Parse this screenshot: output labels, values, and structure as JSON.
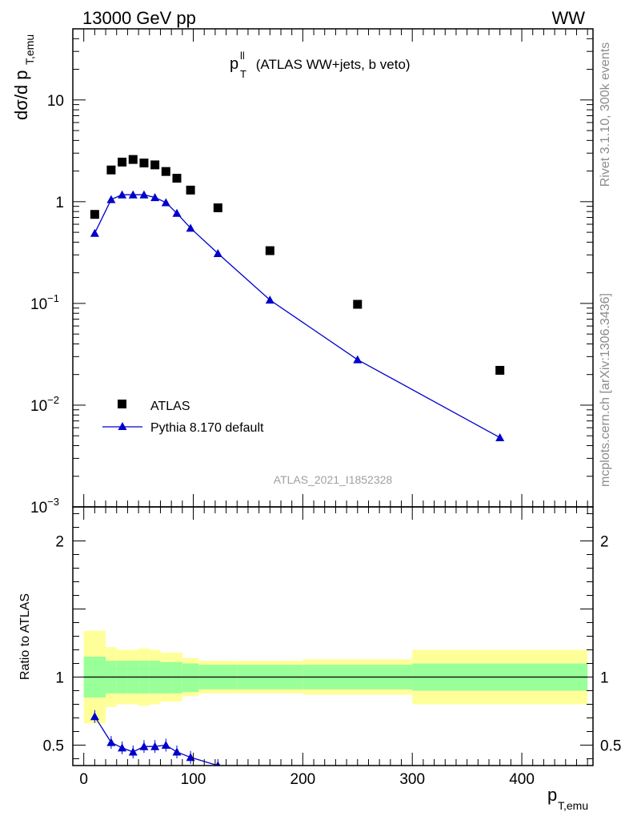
{
  "header": {
    "left": "13000 GeV pp",
    "right": "WW"
  },
  "side_labels": {
    "rivet": "Rivet 3.1.10,  300k events",
    "mcplots": "mcplots.cern.ch [arXiv:1306.3436]"
  },
  "colors": {
    "atlas": "#000000",
    "pythia": "#0000cc",
    "band_inner": "#99ff99",
    "band_outer": "#ffff99"
  },
  "chart_data": [
    {
      "type": "scatter",
      "title_main": "p",
      "title_sup": "ll",
      "title_sub": "T",
      "title_rest": " (ATLAS WW+jets, b veto)",
      "ylabel_main": "dσ/d p",
      "ylabel_sub": "T,emu",
      "yscale": "log",
      "ylim": [
        0.001,
        50
      ],
      "xlim": [
        -10,
        465
      ],
      "y_ticks": [
        {
          "v": 0.001,
          "base": "10",
          "exp": "−3"
        },
        {
          "v": 0.01,
          "base": "10",
          "exp": "−2"
        },
        {
          "v": 0.1,
          "base": "10",
          "exp": "−1"
        },
        {
          "v": 1,
          "base": "1",
          "exp": ""
        },
        {
          "v": 10,
          "base": "10",
          "exp": ""
        }
      ],
      "watermark": "ATLAS_2021_I1852328",
      "legend": [
        {
          "label": "ATLAS",
          "marker": "square"
        },
        {
          "label": "Pythia 8.170 default",
          "marker": "triangle"
        }
      ],
      "series": [
        {
          "name": "ATLAS",
          "x": [
            10,
            25,
            35,
            45,
            55,
            65,
            75,
            85,
            97.5,
            122.5,
            170,
            250,
            380
          ],
          "y": [
            0.75,
            2.05,
            2.45,
            2.6,
            2.4,
            2.3,
            1.98,
            1.7,
            1.3,
            0.87,
            0.33,
            0.098,
            0.022
          ]
        },
        {
          "name": "Pythia 8.170 default",
          "x": [
            10,
            25,
            35,
            45,
            55,
            65,
            75,
            85,
            97.5,
            122.5,
            170,
            250,
            380
          ],
          "y": [
            0.49,
            1.05,
            1.17,
            1.17,
            1.17,
            1.1,
            0.98,
            0.77,
            0.55,
            0.31,
            0.108,
            0.028,
            0.0048
          ]
        }
      ]
    },
    {
      "type": "line",
      "ylabel": "Ratio to ATLAS",
      "xlabel_main": "p",
      "xlabel_sub": "T,emu",
      "xlim": [
        -10,
        465
      ],
      "ylim": [
        0.35,
        2.25
      ],
      "x_ticks": [
        0,
        100,
        200,
        300,
        400
      ],
      "y_ticks": [
        0.5,
        1,
        2
      ],
      "bands": {
        "edges": [
          0,
          20,
          30,
          40,
          50,
          60,
          70,
          80,
          90,
          105,
          140,
          200,
          300,
          460
        ],
        "inner_lo": [
          0.85,
          0.88,
          0.88,
          0.88,
          0.88,
          0.88,
          0.88,
          0.88,
          0.89,
          0.91,
          0.91,
          0.91,
          0.9
        ],
        "inner_hi": [
          1.15,
          1.12,
          1.12,
          1.12,
          1.12,
          1.12,
          1.11,
          1.11,
          1.1,
          1.09,
          1.09,
          1.09,
          1.1
        ],
        "outer_lo": [
          0.66,
          0.78,
          0.8,
          0.8,
          0.79,
          0.8,
          0.82,
          0.82,
          0.86,
          0.88,
          0.88,
          0.87,
          0.8
        ],
        "outer_hi": [
          1.34,
          1.22,
          1.2,
          1.2,
          1.21,
          1.2,
          1.18,
          1.18,
          1.14,
          1.12,
          1.12,
          1.13,
          1.2
        ]
      },
      "series": [
        {
          "name": "Pythia 8.170 default",
          "x": [
            10,
            25,
            35,
            45,
            55,
            65,
            75,
            85,
            97.5,
            122.5
          ],
          "y": [
            0.71,
            0.52,
            0.48,
            0.45,
            0.49,
            0.49,
            0.5,
            0.45,
            0.41,
            0.35
          ]
        }
      ]
    }
  ]
}
